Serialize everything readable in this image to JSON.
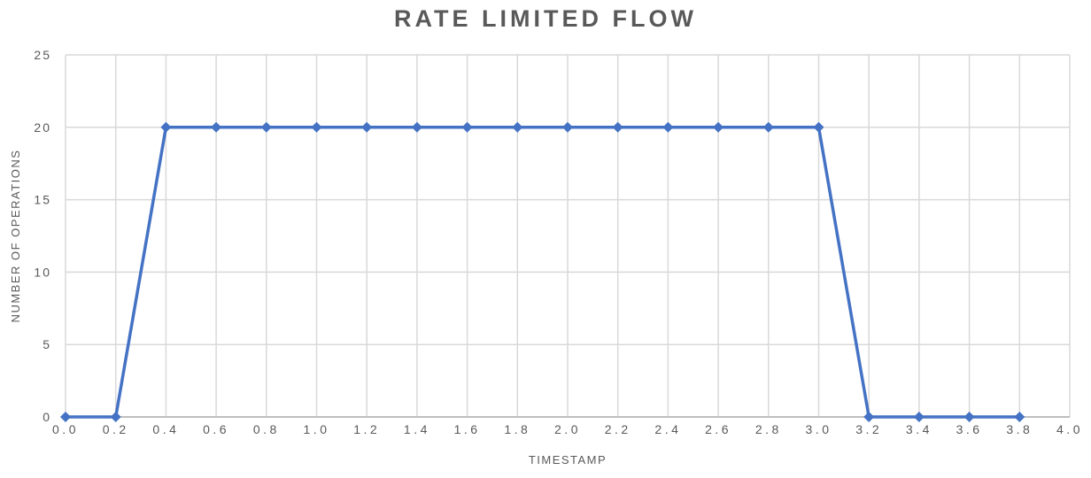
{
  "chart_data": {
    "type": "line",
    "title": "RATE LIMITED FLOW",
    "xlabel": "TIMESTAMP",
    "ylabel": "NUMBER OF OPERATIONS",
    "x": [
      0.0,
      0.2,
      0.4,
      0.6,
      0.8,
      1.0,
      1.2,
      1.4,
      1.6,
      1.8,
      2.0,
      2.2,
      2.4,
      2.6,
      2.8,
      3.0,
      3.2,
      3.4,
      3.6,
      3.8
    ],
    "values": [
      0,
      0,
      20,
      20,
      20,
      20,
      20,
      20,
      20,
      20,
      20,
      20,
      20,
      20,
      20,
      20,
      0,
      0,
      0,
      0
    ],
    "xlim": [
      0.0,
      4.0
    ],
    "ylim": [
      0,
      25
    ],
    "x_tick_labels": [
      "0.0",
      "0.2",
      "0.4",
      "0.6",
      "0.8",
      "1.0",
      "1.2",
      "1.4",
      "1.6",
      "1.8",
      "2.0",
      "2.2",
      "2.4",
      "2.6",
      "2.8",
      "3.0",
      "3.2",
      "3.4",
      "3.6",
      "3.8",
      "4.0"
    ],
    "y_ticks": [
      0,
      5,
      10,
      15,
      20,
      25
    ],
    "grid": true,
    "legend": "none",
    "marker": "diamond",
    "line_color": "#4472C4",
    "grid_color": "#D9D9D9",
    "axis_color": "#BFBFBF",
    "text_color": "#595959",
    "title_color": "#595959"
  }
}
